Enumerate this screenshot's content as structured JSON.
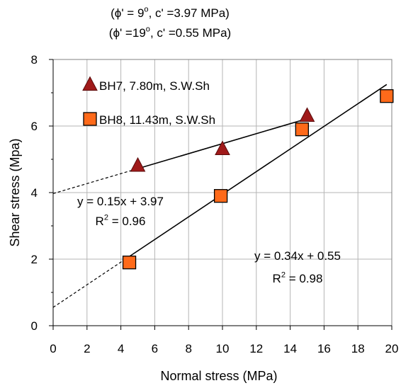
{
  "chart_data": {
    "type": "scatter",
    "header_lines": [
      {
        "pre": "(ϕ' = 9",
        "sup": "o",
        "post": ",  c' =3.97 MPa)"
      },
      {
        "pre": "(ϕ' =19",
        "sup": "o",
        "post": ", c' =0.55 MPa)"
      }
    ],
    "xlabel": "Normal stress (MPa)",
    "ylabel": "Shear stress (Mpa)",
    "xlim": [
      0,
      20
    ],
    "ylim": [
      0,
      8
    ],
    "xticks": [
      "0",
      "2",
      "4",
      "6",
      "8",
      "10",
      "12",
      "14",
      "16",
      "18",
      "20"
    ],
    "yticks": [
      "0",
      "2",
      "4",
      "6",
      "8"
    ],
    "grid": "vertical",
    "legend_position": "top-left",
    "series": [
      {
        "name": "BH7, 7.80m, S.W.Sh",
        "marker": "triangle",
        "color": "#a01a1a",
        "points": [
          {
            "x": 5.0,
            "y": 4.8
          },
          {
            "x": 10.0,
            "y": 5.3
          },
          {
            "x": 15.0,
            "y": 6.3
          }
        ],
        "fit": {
          "slope": 0.15,
          "intercept": 3.97,
          "x_from": 5.0,
          "x_to": 15.0,
          "extrap_from": 0.0
        },
        "equation": {
          "pre": "y = 0.15x + 3.97",
          "r_pre": "R",
          "r_sup": "2",
          "r_post": " = 0.96"
        }
      },
      {
        "name": "BH8, 11.43m, S.W.Sh",
        "marker": "square",
        "color": "#ff6a1a",
        "points": [
          {
            "x": 4.5,
            "y": 1.9
          },
          {
            "x": 9.9,
            "y": 3.9
          },
          {
            "x": 14.7,
            "y": 5.9
          },
          {
            "x": 19.7,
            "y": 6.9
          }
        ],
        "fit": {
          "slope": 0.34,
          "intercept": 0.55,
          "x_from": 4.5,
          "x_to": 19.7,
          "extrap_from": 0.0
        },
        "equation": {
          "pre": "y = 0.34x + 0.55",
          "r_pre": "R",
          "r_sup": "2",
          "r_post": " = 0.98"
        }
      }
    ]
  }
}
